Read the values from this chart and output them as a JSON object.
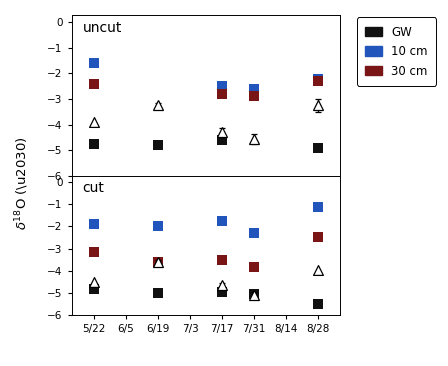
{
  "x_labels": [
    "5/22",
    "6/5",
    "6/19",
    "7/3",
    "7/17",
    "7/31",
    "8/14",
    "8/28"
  ],
  "x_positions": [
    0,
    1,
    2,
    3,
    4,
    5,
    6,
    7
  ],
  "uncut": {
    "GW_y": [
      -4.75,
      null,
      -4.8,
      null,
      -4.6,
      null,
      null,
      -4.9
    ],
    "cm10_y": [
      -1.6,
      null,
      null,
      null,
      -2.5,
      -2.6,
      null,
      -2.2
    ],
    "cm30_y": [
      -2.4,
      null,
      null,
      null,
      -2.8,
      -2.9,
      null,
      -2.3
    ],
    "tri_y": [
      -3.9,
      null,
      -3.25,
      null,
      -4.3,
      -4.55,
      null,
      -3.25
    ],
    "tri_err": [
      null,
      null,
      0.1,
      null,
      0.15,
      0.2,
      null,
      0.25
    ]
  },
  "cut": {
    "GW_y": [
      -4.85,
      null,
      -5.0,
      null,
      -4.95,
      -5.05,
      null,
      -5.5
    ],
    "cm10_y": [
      -1.9,
      null,
      -2.0,
      null,
      -1.75,
      -2.3,
      null,
      -1.1
    ],
    "cm30_y": [
      -3.15,
      null,
      -3.6,
      null,
      -3.5,
      -3.85,
      null,
      -2.5
    ],
    "tri_y": [
      -4.5,
      null,
      -3.6,
      null,
      -4.65,
      -5.1,
      null,
      -3.95
    ],
    "tri_err": [
      null,
      null,
      0.1,
      null,
      0.1,
      0.15,
      null,
      null
    ]
  },
  "colors": {
    "GW": "#111111",
    "cm10": "#2255bb",
    "cm30": "#7a1515",
    "tri": "#000000"
  },
  "ylim": [
    -6,
    0.3
  ],
  "yticks": [
    0,
    -1,
    -2,
    -3,
    -4,
    -5,
    -6
  ],
  "subplot_labels": [
    "uncut",
    "cut"
  ],
  "ylabel": "δ¹⁸O (‰o)",
  "legend_labels": [
    "GW",
    "10 cm",
    "30 cm"
  ]
}
